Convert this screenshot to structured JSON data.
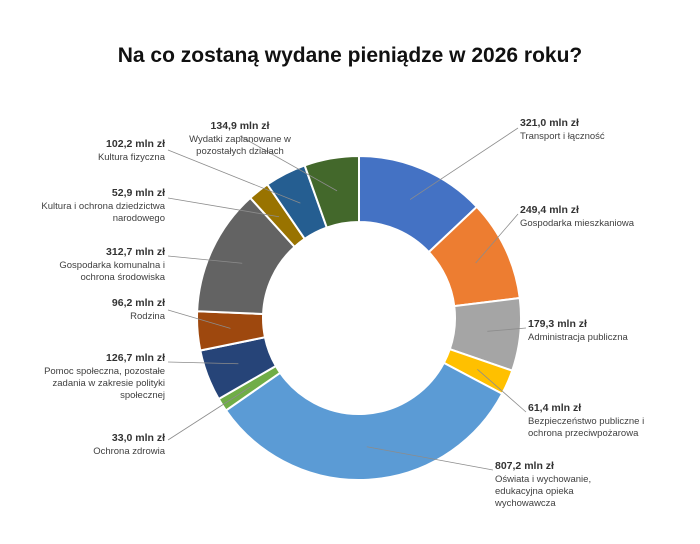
{
  "chart_data": {
    "type": "pie",
    "subtype": "donut",
    "title": "Na co zostaną wydane pieniądze w 2026 roku?",
    "unit": "mln zł",
    "slices": [
      {
        "label": "Transport i łączność",
        "value": 321.0,
        "value_text": "321,0 mln zł",
        "color": "#4472C4"
      },
      {
        "label": "Gospodarka mieszkaniowa",
        "value": 249.4,
        "value_text": "249,4 mln zł",
        "color": "#ED7D31"
      },
      {
        "label": "Administracja publiczna",
        "value": 179.3,
        "value_text": "179,3 mln zł",
        "color": "#A5A5A5"
      },
      {
        "label": "Bezpieczeństwo publiczne i ochrona przeciwpożarowa",
        "value": 61.4,
        "value_text": "61,4 mln zł",
        "color": "#FFC000"
      },
      {
        "label": "Oświata i wychowanie, edukacyjna opieka wychowawcza",
        "value": 807.2,
        "value_text": "807,2 mln zł",
        "color": "#5B9BD5"
      },
      {
        "label": "Ochrona zdrowia",
        "value": 33.0,
        "value_text": "33,0 mln zł",
        "color": "#70AD47"
      },
      {
        "label": "Pomoc społeczna, pozostałe zadania w zakresie polityki społecznej",
        "value": 126.7,
        "value_text": "126,7 mln zł",
        "color": "#264478"
      },
      {
        "label": "Rodzina",
        "value": 96.2,
        "value_text": "96,2 mln zł",
        "color": "#9E480E"
      },
      {
        "label": "Gospodarka komunalna i ochrona środowiska",
        "value": 312.7,
        "value_text": "312,7 mln zł",
        "color": "#636363"
      },
      {
        "label": "Kultura i ochrona dziedzictwa narodowego",
        "value": 52.9,
        "value_text": "52,9 mln zł",
        "color": "#997300"
      },
      {
        "label": "Kultura fizyczna",
        "value": 102.2,
        "value_text": "102,2 mln zł",
        "color": "#255E91"
      },
      {
        "label": "Wydatki zaplanowane w pozostałych działach",
        "value": 134.9,
        "value_text": "134,9 mln zł",
        "color": "#43682B"
      }
    ],
    "legend": "none"
  }
}
